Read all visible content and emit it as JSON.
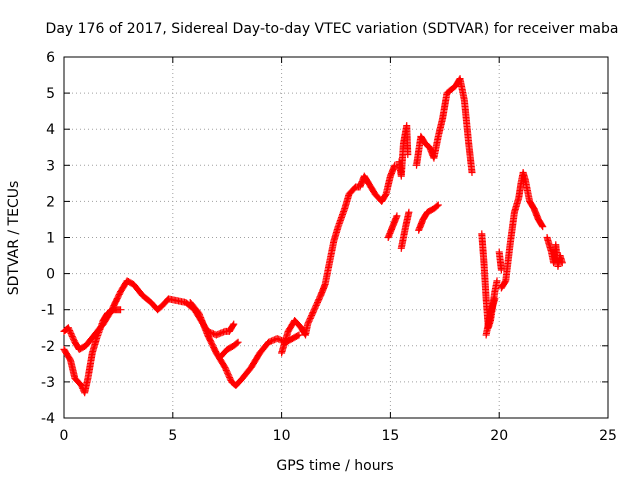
{
  "chart_data": {
    "type": "scatter",
    "title": "Day 176 of 2017, Sidereal Day-to-day VTEC variation (SDTVAR) for receiver maba",
    "xlabel": "GPS time / hours",
    "ylabel": "SDTVAR / TECUs",
    "xlim": [
      0,
      25
    ],
    "ylim": [
      -4,
      6
    ],
    "xticks": [
      "0",
      "5",
      "10",
      "15",
      "20",
      "25"
    ],
    "yticks": [
      "-4",
      "-3",
      "-2",
      "-1",
      "0",
      "1",
      "2",
      "3",
      "4",
      "5",
      "6"
    ],
    "grid": true,
    "marker": "plus",
    "color": "#ff0000",
    "series": [
      {
        "segments": [
          [
            [
              0,
              -1.6
            ],
            [
              0.2,
              -1.5
            ],
            [
              0.5,
              -1.9
            ],
            [
              0.7,
              -2.1
            ],
            [
              1.0,
              -2.0
            ],
            [
              1.4,
              -1.7
            ],
            [
              1.8,
              -1.4
            ],
            [
              2.2,
              -1.0
            ],
            [
              2.6,
              -0.5
            ],
            [
              2.9,
              -0.2
            ],
            [
              3.2,
              -0.3
            ],
            [
              3.6,
              -0.6
            ],
            [
              4.0,
              -0.8
            ],
            [
              4.3,
              -1.0
            ],
            [
              4.5,
              -0.9
            ],
            [
              4.8,
              -0.7
            ],
            [
              5.2,
              -0.75
            ],
            [
              5.6,
              -0.8
            ],
            [
              6.0,
              -1.0
            ],
            [
              6.3,
              -1.3
            ],
            [
              6.6,
              -1.6
            ],
            [
              7.0,
              -1.7
            ],
            [
              7.4,
              -1.6
            ],
            [
              7.6,
              -1.6
            ],
            [
              7.8,
              -1.4
            ]
          ],
          [
            [
              0,
              -2.1
            ],
            [
              0.3,
              -2.4
            ],
            [
              0.5,
              -2.9
            ],
            [
              0.8,
              -3.1
            ],
            [
              0.95,
              -3.3
            ],
            [
              1.1,
              -2.9
            ],
            [
              1.3,
              -2.2
            ],
            [
              1.5,
              -1.8
            ],
            [
              1.8,
              -1.3
            ],
            [
              2.0,
              -1.1
            ],
            [
              2.3,
              -1.0
            ],
            [
              2.6,
              -1.0
            ]
          ],
          [
            [
              5.8,
              -0.8
            ],
            [
              6.2,
              -1.1
            ],
            [
              6.6,
              -1.7
            ],
            [
              7.0,
              -2.2
            ],
            [
              7.4,
              -2.6
            ],
            [
              7.7,
              -3.0
            ],
            [
              7.9,
              -3.1
            ],
            [
              8.2,
              -2.9
            ],
            [
              8.6,
              -2.6
            ],
            [
              9.0,
              -2.2
            ],
            [
              9.4,
              -1.9
            ],
            [
              9.8,
              -1.8
            ],
            [
              10.2,
              -1.9
            ],
            [
              10.5,
              -1.8
            ],
            [
              10.8,
              -1.7
            ]
          ],
          [
            [
              7.2,
              -2.3
            ],
            [
              7.5,
              -2.1
            ],
            [
              7.8,
              -2.0
            ],
            [
              8.0,
              -1.9
            ]
          ],
          [
            [
              10.0,
              -2.2
            ],
            [
              10.3,
              -1.6
            ],
            [
              10.6,
              -1.3
            ],
            [
              10.9,
              -1.5
            ],
            [
              11.1,
              -1.7
            ],
            [
              11.2,
              -1.4
            ],
            [
              11.5,
              -1.0
            ],
            [
              11.8,
              -0.6
            ],
            [
              12.0,
              -0.3
            ],
            [
              12.2,
              0.3
            ],
            [
              12.4,
              0.9
            ],
            [
              12.6,
              1.3
            ],
            [
              12.9,
              1.8
            ],
            [
              13.1,
              2.2
            ],
            [
              13.4,
              2.4
            ],
            [
              13.6,
              2.4
            ],
            [
              13.8,
              2.7
            ],
            [
              14.0,
              2.5
            ],
            [
              14.3,
              2.2
            ],
            [
              14.6,
              2.0
            ],
            [
              14.8,
              2.2
            ],
            [
              15.0,
              2.7
            ],
            [
              15.2,
              3.0
            ]
          ],
          [
            [
              14.9,
              1.0
            ],
            [
              15.1,
              1.3
            ],
            [
              15.3,
              1.6
            ]
          ],
          [
            [
              15.4,
              3.1
            ],
            [
              15.5,
              2.7
            ],
            [
              15.6,
              3.6
            ],
            [
              15.75,
              4.1
            ],
            [
              15.8,
              3.3
            ]
          ],
          [
            [
              15.5,
              0.7
            ],
            [
              15.7,
              1.3
            ],
            [
              15.85,
              1.7
            ]
          ],
          [
            [
              16.2,
              3.0
            ],
            [
              16.4,
              3.8
            ],
            [
              16.6,
              3.6
            ],
            [
              16.8,
              3.5
            ],
            [
              17.0,
              3.2
            ],
            [
              17.2,
              3.8
            ],
            [
              17.4,
              4.3
            ],
            [
              17.6,
              5.0
            ],
            [
              17.8,
              5.1
            ],
            [
              18.0,
              5.2
            ],
            [
              18.2,
              5.4
            ],
            [
              18.4,
              4.8
            ],
            [
              18.6,
              3.6
            ],
            [
              18.75,
              2.8
            ]
          ],
          [
            [
              16.3,
              1.2
            ],
            [
              16.5,
              1.5
            ],
            [
              16.7,
              1.7
            ],
            [
              17.0,
              1.8
            ],
            [
              17.2,
              1.9
            ]
          ],
          [
            [
              19.2,
              1.1
            ],
            [
              19.3,
              0.3
            ],
            [
              19.4,
              -0.7
            ],
            [
              19.5,
              -1.5
            ],
            [
              19.6,
              -1.3
            ],
            [
              19.8,
              -0.5
            ],
            [
              19.9,
              -0.2
            ]
          ],
          [
            [
              19.4,
              -1.7
            ],
            [
              19.6,
              -1.1
            ],
            [
              19.8,
              -0.7
            ]
          ],
          [
            [
              20.0,
              0.6
            ],
            [
              20.1,
              0.1
            ]
          ],
          [
            [
              20.1,
              -0.4
            ],
            [
              20.3,
              -0.2
            ],
            [
              20.5,
              0.8
            ],
            [
              20.7,
              1.7
            ],
            [
              20.9,
              2.1
            ],
            [
              21.0,
              2.5
            ],
            [
              21.1,
              2.8
            ],
            [
              21.2,
              2.6
            ],
            [
              21.4,
              2.0
            ],
            [
              21.6,
              1.8
            ],
            [
              21.8,
              1.5
            ],
            [
              22.0,
              1.3
            ]
          ],
          [
            [
              22.2,
              1.0
            ],
            [
              22.4,
              0.6
            ],
            [
              22.5,
              0.3
            ],
            [
              22.6,
              0.8
            ],
            [
              22.7,
              0.2
            ],
            [
              22.8,
              0.5
            ],
            [
              22.9,
              0.3
            ]
          ]
        ]
      }
    ]
  }
}
